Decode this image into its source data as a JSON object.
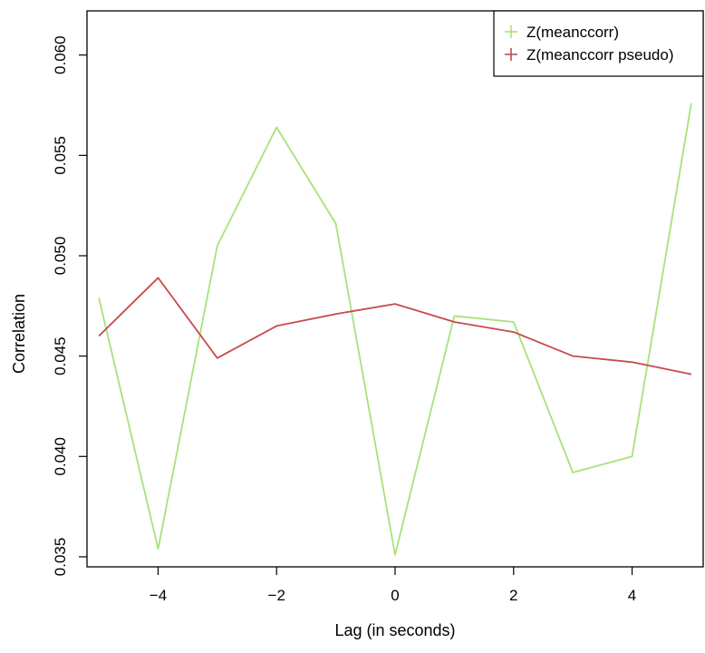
{
  "chart_data": {
    "type": "line",
    "title": "",
    "xlabel": "Lag (in seconds)",
    "ylabel": "Correlation",
    "xlim": [
      -5.2,
      5.2
    ],
    "ylim": [
      0.0345,
      0.0622
    ],
    "x_ticks": [
      -4,
      -2,
      0,
      2,
      4
    ],
    "x_tick_labels": [
      "−4",
      "−2",
      "0",
      "2",
      "4"
    ],
    "y_ticks": [
      0.035,
      0.04,
      0.045,
      0.05,
      0.055,
      0.06
    ],
    "y_tick_labels": [
      "0.035",
      "0.040",
      "0.045",
      "0.050",
      "0.055",
      "0.060"
    ],
    "grid": false,
    "legend_position": "top-right",
    "x": [
      -5,
      -4,
      -3,
      -2,
      -1,
      0,
      1,
      2,
      3,
      4,
      5
    ],
    "series": [
      {
        "name": "Z(meanccorr)",
        "color": "#a8e27a",
        "values": [
          0.0479,
          0.0354,
          0.0505,
          0.0564,
          0.0516,
          0.0351,
          0.047,
          0.0467,
          0.0392,
          0.04,
          0.0576
        ]
      },
      {
        "name": "Z(meanccorr pseudo)",
        "color": "#c84a4a",
        "values": [
          0.046,
          0.0489,
          0.0449,
          0.0465,
          0.0471,
          0.0476,
          0.0467,
          0.0462,
          0.045,
          0.0447,
          0.0441
        ]
      }
    ]
  }
}
